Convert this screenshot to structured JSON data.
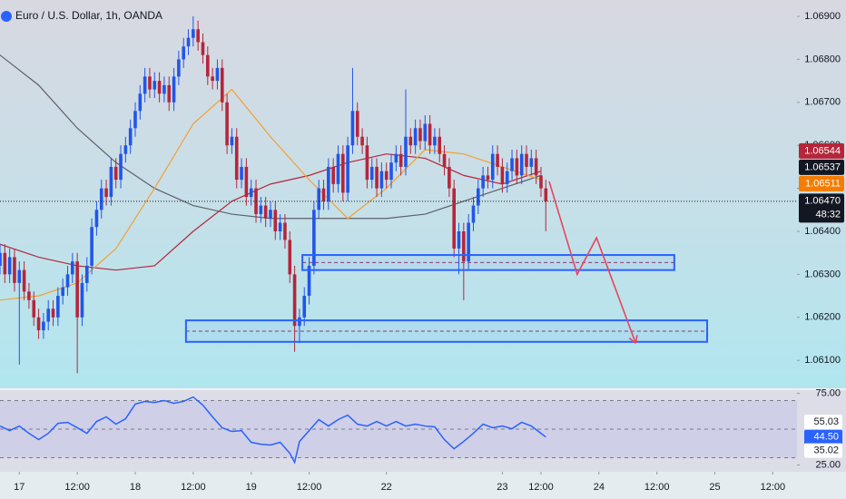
{
  "chart_data": [
    {
      "type": "candlestick",
      "title": "Euro / U.S. Dollar, 1h, OANDA",
      "x": [
        0,
        1,
        2,
        3,
        4,
        5,
        6,
        7,
        8,
        9,
        10,
        11,
        12,
        13,
        14,
        15,
        16,
        17,
        18,
        19,
        20,
        21,
        22,
        23,
        24,
        25,
        26,
        27,
        28,
        29,
        30,
        31,
        32,
        33,
        34,
        35,
        36,
        37,
        38,
        39,
        40,
        41,
        42,
        43,
        44,
        45,
        46,
        47,
        48,
        49,
        50,
        51,
        52,
        53,
        54,
        55,
        56,
        57,
        58,
        59,
        60,
        61,
        62,
        63,
        64,
        65,
        66,
        67,
        68,
        69,
        70,
        71,
        72,
        73,
        74,
        75,
        76,
        77,
        78,
        79,
        80,
        81,
        82,
        83,
        84,
        85,
        86,
        87,
        88,
        89,
        90,
        91,
        92,
        93,
        94,
        95,
        96,
        97,
        98,
        99,
        100,
        101,
        102,
        103,
        104,
        105,
        106,
        107,
        108,
        109,
        110,
        111,
        112,
        113
      ],
      "open": [
        1.0632,
        1.0635,
        1.063,
        1.0634,
        1.0628,
        1.0631,
        1.0626,
        1.0624,
        1.062,
        1.0617,
        1.0619,
        1.0622,
        1.062,
        1.0625,
        1.0627,
        1.063,
        1.0633,
        1.062,
        1.0628,
        1.0632,
        1.0641,
        1.0645,
        1.065,
        1.0648,
        1.0655,
        1.0652,
        1.0658,
        1.066,
        1.0664,
        1.0668,
        1.0672,
        1.0676,
        1.0673,
        1.0675,
        1.0672,
        1.0674,
        1.067,
        1.0676,
        1.068,
        1.0683,
        1.0685,
        1.0687,
        1.0684,
        1.0681,
        1.0676,
        1.0675,
        1.0678,
        1.067,
        1.066,
        1.0662,
        1.0652,
        1.0655,
        1.0648,
        1.065,
        1.0644,
        1.0646,
        1.0643,
        1.0645,
        1.064,
        1.0642,
        1.0638,
        1.063,
        1.0618,
        1.062,
        1.0625,
        1.0632,
        1.0645,
        1.065,
        1.0647,
        1.0655,
        1.0651,
        1.0658,
        1.0649,
        1.066,
        1.0668,
        1.0662,
        1.066,
        1.0652,
        1.0655,
        1.065,
        1.0654,
        1.0652,
        1.0656,
        1.0658,
        1.0655,
        1.0662,
        1.066,
        1.0664,
        1.0661,
        1.0665,
        1.066,
        1.0662,
        1.0658,
        1.0655,
        1.065,
        1.0636,
        1.064,
        1.0633,
        1.0642,
        1.0646,
        1.065,
        1.0653,
        1.0652,
        1.0658,
        1.0655,
        1.0651,
        1.0654,
        1.0657,
        1.0653,
        1.0658,
        1.0655,
        1.0657,
        1.0653,
        1.065
      ],
      "high": [
        1.0637,
        1.0637,
        1.0636,
        1.0636,
        1.0633,
        1.0633,
        1.0628,
        1.0626,
        1.0622,
        1.0621,
        1.0624,
        1.0624,
        1.0627,
        1.0629,
        1.0632,
        1.0635,
        1.0635,
        1.063,
        1.0634,
        1.0643,
        1.0647,
        1.0652,
        1.0652,
        1.0657,
        1.0657,
        1.066,
        1.0662,
        1.0666,
        1.067,
        1.0674,
        1.0678,
        1.0678,
        1.0677,
        1.0677,
        1.0676,
        1.0676,
        1.0678,
        1.0682,
        1.0685,
        1.0687,
        1.069,
        1.0689,
        1.0686,
        1.0683,
        1.0678,
        1.068,
        1.068,
        1.0672,
        1.0664,
        1.0664,
        1.0657,
        1.0657,
        1.0652,
        1.0652,
        1.0648,
        1.0648,
        1.0647,
        1.0647,
        1.0644,
        1.0644,
        1.064,
        1.0632,
        1.0622,
        1.0627,
        1.0634,
        1.0647,
        1.0652,
        1.0652,
        1.0657,
        1.0657,
        1.066,
        1.066,
        1.0662,
        1.0678,
        1.067,
        1.0664,
        1.0662,
        1.0657,
        1.0657,
        1.0656,
        1.0656,
        1.0658,
        1.066,
        1.066,
        1.0673,
        1.0664,
        1.0666,
        1.0666,
        1.0667,
        1.0667,
        1.0664,
        1.0664,
        1.066,
        1.0657,
        1.0652,
        1.0642,
        1.0642,
        1.0644,
        1.0648,
        1.0652,
        1.0655,
        1.0655,
        1.066,
        1.066,
        1.0657,
        1.0656,
        1.0659,
        1.0659,
        1.066,
        1.066,
        1.0659,
        1.0659,
        1.0655,
        1.0652
      ],
      "low": [
        1.063,
        1.0628,
        1.0628,
        1.0626,
        1.0609,
        1.0624,
        1.0622,
        1.0618,
        1.0615,
        1.0615,
        1.0617,
        1.0618,
        1.0618,
        1.0623,
        1.0625,
        1.0628,
        1.0607,
        1.0618,
        1.0626,
        1.063,
        1.0639,
        1.0643,
        1.0646,
        1.0646,
        1.065,
        1.065,
        1.0656,
        1.0658,
        1.0662,
        1.0666,
        1.067,
        1.0671,
        1.0671,
        1.067,
        1.067,
        1.0668,
        1.0668,
        1.0674,
        1.0678,
        1.0681,
        1.0683,
        1.0682,
        1.0679,
        1.0674,
        1.0673,
        1.0673,
        1.0668,
        1.0658,
        1.0658,
        1.065,
        1.065,
        1.0646,
        1.0646,
        1.0642,
        1.0642,
        1.0641,
        1.0641,
        1.0638,
        1.0638,
        1.0636,
        1.0628,
        1.0612,
        1.0614,
        1.0618,
        1.0623,
        1.063,
        1.0643,
        1.0645,
        1.0645,
        1.0649,
        1.0649,
        1.0647,
        1.0647,
        1.0658,
        1.066,
        1.0658,
        1.065,
        1.065,
        1.0648,
        1.0648,
        1.065,
        1.065,
        1.0654,
        1.0653,
        1.0653,
        1.0658,
        1.0658,
        1.0659,
        1.0659,
        1.0658,
        1.0658,
        1.0656,
        1.0653,
        1.0648,
        1.0634,
        1.063,
        1.0624,
        1.0631,
        1.064,
        1.0644,
        1.0648,
        1.065,
        1.065,
        1.0653,
        1.0649,
        1.0649,
        1.0652,
        1.0651,
        1.0651,
        1.0653,
        1.0653,
        1.0651,
        1.0648,
        1.064
      ],
      "close": [
        1.0635,
        1.063,
        1.0634,
        1.0628,
        1.0631,
        1.0626,
        1.0624,
        1.062,
        1.0617,
        1.0619,
        1.0622,
        1.062,
        1.0625,
        1.0627,
        1.063,
        1.0633,
        1.062,
        1.0628,
        1.0632,
        1.0641,
        1.0645,
        1.065,
        1.0648,
        1.0655,
        1.0652,
        1.0658,
        1.066,
        1.0664,
        1.0668,
        1.0672,
        1.0676,
        1.0673,
        1.0675,
        1.0672,
        1.0674,
        1.067,
        1.0676,
        1.068,
        1.0683,
        1.0685,
        1.0687,
        1.0684,
        1.0681,
        1.0676,
        1.0675,
        1.0678,
        1.067,
        1.066,
        1.0662,
        1.0652,
        1.0655,
        1.0648,
        1.065,
        1.0644,
        1.0646,
        1.0643,
        1.0645,
        1.064,
        1.0642,
        1.0638,
        1.063,
        1.0618,
        1.062,
        1.0625,
        1.0632,
        1.0645,
        1.065,
        1.0647,
        1.0655,
        1.0651,
        1.0658,
        1.0649,
        1.066,
        1.0668,
        1.0662,
        1.066,
        1.0652,
        1.0655,
        1.065,
        1.0654,
        1.0652,
        1.0656,
        1.0658,
        1.0655,
        1.0662,
        1.066,
        1.0664,
        1.0661,
        1.0665,
        1.066,
        1.0662,
        1.0658,
        1.0655,
        1.065,
        1.0636,
        1.064,
        1.0633,
        1.0642,
        1.0646,
        1.065,
        1.0653,
        1.0652,
        1.0658,
        1.0655,
        1.0651,
        1.0654,
        1.0657,
        1.0653,
        1.0658,
        1.0655,
        1.0657,
        1.0653,
        1.065,
        1.0647
      ],
      "up_color": "#2156e8",
      "down_color": "#b5263a",
      "xlim": [
        0,
        165
      ],
      "ylim": [
        1.06035,
        1.06938
      ],
      "yticks": [
        {
          "value": 1.069,
          "label": "1.06900"
        },
        {
          "value": 1.068,
          "label": "1.06800"
        },
        {
          "value": 1.067,
          "label": "1.06700"
        },
        {
          "value": 1.066,
          "label": "1.06600"
        },
        {
          "value": 1.065,
          "label": "1.06500"
        },
        {
          "value": 1.064,
          "label": "1.06400"
        },
        {
          "value": 1.063,
          "label": "1.06300"
        },
        {
          "value": 1.062,
          "label": "1.06200"
        },
        {
          "value": 1.061,
          "label": "1.06100"
        }
      ],
      "xticks": [
        {
          "value": 4,
          "label": "17"
        },
        {
          "value": 16,
          "label": "12:00"
        },
        {
          "value": 28,
          "label": "18"
        },
        {
          "value": 40,
          "label": "12:00"
        },
        {
          "value": 52,
          "label": "19"
        },
        {
          "value": 64,
          "label": "12:00"
        },
        {
          "value": 80,
          "label": "22"
        },
        {
          "value": 104,
          "label": "23"
        },
        {
          "value": 112,
          "label": "12:00"
        },
        {
          "value": 124,
          "label": "24"
        },
        {
          "value": 136,
          "label": "12:00"
        },
        {
          "value": 148,
          "label": "25"
        },
        {
          "value": 160,
          "label": "12:00"
        }
      ],
      "lines": {
        "x": [
          0,
          8,
          16,
          24,
          32,
          40,
          48,
          56,
          64,
          72,
          80,
          88,
          96,
          104,
          112
        ],
        "series": [
          {
            "color": "#5d606b",
            "values": [
              1.0681,
              1.0674,
              1.0664,
              1.0656,
              1.065,
              1.0646,
              1.0644,
              1.0643,
              1.0643,
              1.0643,
              1.0643,
              1.0644,
              1.0647,
              1.065,
              1.0653
            ]
          },
          {
            "color": "#b5263a",
            "values": [
              1.0637,
              1.0634,
              1.0632,
              1.0631,
              1.0632,
              1.064,
              1.0647,
              1.0651,
              1.0653,
              1.0656,
              1.0658,
              1.0657,
              1.0653,
              1.0651,
              1.0654
            ]
          },
          {
            "color": "#f5a030",
            "values": [
              1.0624,
              1.0625,
              1.0628,
              1.0636,
              1.065,
              1.0665,
              1.0673,
              1.0662,
              1.0652,
              1.0643,
              1.065,
              1.0659,
              1.0658,
              1.0655,
              1.0652
            ]
          }
        ]
      },
      "zones": [
        {
          "x": [
            62.6,
            139.6
          ],
          "y": [
            1.06345,
            1.0631
          ]
        },
        {
          "x": [
            38.5,
            146.4
          ],
          "y": [
            1.06193,
            1.06143
          ]
        }
      ],
      "zone_color": "#2962ff",
      "projection": {
        "x": [
          113.7,
          119.5,
          123.5,
          131.6
        ],
        "y": [
          1.06516,
          1.063,
          1.06385,
          1.0614
        ],
        "color": "#e8455a"
      },
      "price_tags": [
        {
          "value": 1.06544,
          "label": "1.06544",
          "color": "#b5263a"
        },
        {
          "value": 1.06537,
          "label": "1.06537",
          "color": "#131722"
        },
        {
          "value": 1.06511,
          "label": "1.06511",
          "color": "#f57c00"
        },
        {
          "value": 1.0647,
          "label": "1.06470",
          "color": "#131722"
        }
      ],
      "countdown": "48:32"
    },
    {
      "type": "line",
      "x": [
        0,
        2,
        4,
        6,
        8,
        10,
        12,
        14,
        16,
        18,
        20,
        22,
        24,
        26,
        28,
        30,
        32,
        34,
        36,
        38,
        40,
        42,
        44,
        46,
        48,
        50,
        52,
        54,
        56,
        58,
        60,
        61,
        62,
        64,
        66,
        68,
        70,
        72,
        74,
        76,
        78,
        80,
        82,
        84,
        86,
        88,
        90,
        92,
        94,
        96,
        98,
        100,
        102,
        104,
        106,
        108,
        110,
        112,
        113
      ],
      "values": [
        52.2,
        49.0,
        52.2,
        47.1,
        42.7,
        47.1,
        54.1,
        54.8,
        51.0,
        47.1,
        55.4,
        58.6,
        53.5,
        57.3,
        67.5,
        69.4,
        68.7,
        70.0,
        68.1,
        69.4,
        72.5,
        66.8,
        58.6,
        51.0,
        48.4,
        49.0,
        40.8,
        39.5,
        38.9,
        40.8,
        33.2,
        26.8,
        41.4,
        49.0,
        56.7,
        52.2,
        56.7,
        59.8,
        53.5,
        52.2,
        55.4,
        52.2,
        55.4,
        52.2,
        53.5,
        52.2,
        51.6,
        42.7,
        36.3,
        41.4,
        47.1,
        53.5,
        51.0,
        52.2,
        50.3,
        54.8,
        52.2,
        47.1,
        44.5
      ],
      "color": "#2962ff",
      "xlim": [
        0,
        165
      ],
      "ylim": [
        20.2,
        77.3
      ],
      "yticks": [
        {
          "value": 75,
          "label": "75.00"
        },
        {
          "value": 25,
          "label": "25.00"
        }
      ],
      "levels": [
        70,
        50,
        30
      ],
      "band_color": "#c4c3e8",
      "tags": [
        {
          "value": 55.03,
          "label": "55.03",
          "color": "#ffffff"
        },
        {
          "value": 44.5,
          "label": "44.50",
          "color": "#2962ff"
        },
        {
          "value": 35.02,
          "label": "35.02",
          "color": "#ffffff"
        }
      ]
    }
  ]
}
